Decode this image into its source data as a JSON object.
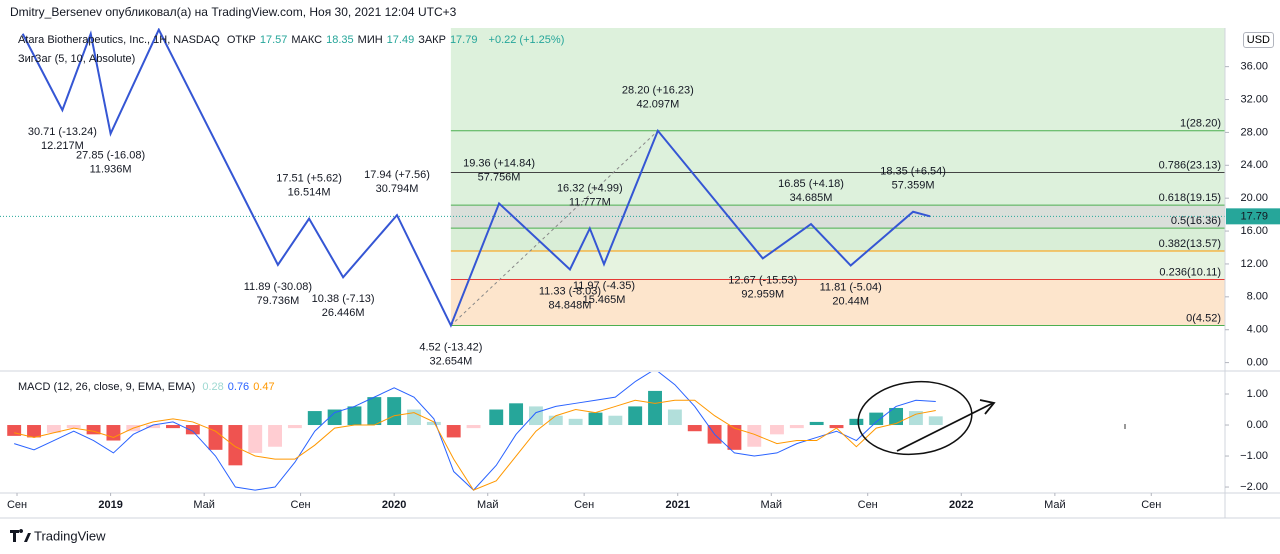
{
  "header": {
    "publisher": "Dmitry_Bersenev опубликовал(а) на TradingView.com, Ноя 30, 2021 12:04 UTC+3",
    "brand": "TradingView"
  },
  "chart_data": [
    {
      "type": "zigzag",
      "title": "Atara Biotherapeutics, Inc., 1Н, NASDAQ",
      "ohlc": [
        {
          "label": "ОТКР",
          "value": 17.57
        },
        {
          "label": "МАКС",
          "value": 18.35
        },
        {
          "label": "МИН",
          "value": 17.49
        },
        {
          "label": "ЗАКР",
          "value": 17.79
        }
      ],
      "change": "+0.22 (+1.25%)",
      "currency": "USD",
      "last": 17.79,
      "ylim": [
        -0.9,
        40.7
      ],
      "yticks": [
        {
          "value": 0,
          "label": "0.00"
        },
        {
          "value": 4,
          "label": "4.00"
        },
        {
          "value": 8,
          "label": "8.00"
        },
        {
          "value": 12,
          "label": "12.00"
        },
        {
          "value": 16,
          "label": "16.00"
        },
        {
          "value": 20,
          "label": "20.00"
        },
        {
          "value": 24,
          "label": "24.00"
        },
        {
          "value": 28,
          "label": "28.00"
        },
        {
          "value": 32,
          "label": "32.00"
        },
        {
          "value": 36,
          "label": "36.00"
        }
      ],
      "series": [
        {
          "name": "ЗигЗаг (5, 10, Absolute)",
          "color": "#3556d4",
          "x": [
            2018.69,
            2018.83,
            2018.93,
            2019.0,
            2019.17,
            2019.59,
            2019.7,
            2019.82,
            2020.01,
            2020.2,
            2020.37,
            2020.62,
            2020.69,
            2020.74,
            2020.93,
            2021.3,
            2021.47,
            2021.61,
            2021.83,
            2021.89
          ],
          "values": [
            40,
            30.71,
            40,
            27.85,
            40.5,
            11.89,
            17.51,
            10.38,
            17.94,
            4.52,
            19.36,
            11.33,
            16.32,
            11.97,
            28.2,
            12.67,
            16.85,
            11.81,
            18.35,
            17.79
          ],
          "pivot_labels": [
            null,
            [
              "30.71 (-13.24)",
              "12.217M"
            ],
            null,
            [
              "27.85 (-16.08)",
              "11.936M"
            ],
            null,
            [
              "11.89 (-30.08)",
              "79.736M"
            ],
            [
              "17.51 (+5.62)",
              "16.514M"
            ],
            [
              "10.38 (-7.13)",
              "26.446M"
            ],
            [
              "17.94 (+7.56)",
              "30.794M"
            ],
            [
              "4.52 (-13.42)",
              "32.654M"
            ],
            [
              "19.36 (+14.84)",
              "57.756M"
            ],
            [
              "11.33 (-8.03)",
              "84.848M"
            ],
            [
              "16.32 (+4.99)",
              "11.777M"
            ],
            [
              "11.97 (-4.35)",
              "15.465M"
            ],
            [
              "28.20 (+16.23)",
              "42.097M"
            ],
            [
              "12.67 (-15.53)",
              "92.959M"
            ],
            [
              "16.85 (+4.18)",
              "34.685M"
            ],
            [
              "11.81 (-5.04)",
              "20.44M"
            ],
            [
              "18.35 (+6.54)",
              "57.359M"
            ],
            null
          ]
        }
      ],
      "fib": {
        "start": 2020.2,
        "levels": [
          {
            "value": 28.2,
            "label": "1(28.20)",
            "color": "#4caf50",
            "fill": "#d9f0d8"
          },
          {
            "value": 23.13,
            "label": "0.786(23.13)",
            "color": "#444444",
            "fill": "#d9f0d8"
          },
          {
            "value": 19.15,
            "label": "0.618(19.15)",
            "color": "#4caf50",
            "fill": "#d6dcd6"
          },
          {
            "value": 16.36,
            "label": "0.5(16.36)",
            "color": "#4caf50",
            "fill": "#d5ecd3"
          },
          {
            "value": 13.57,
            "label": "0.382(13.57)",
            "color": "#ff9800",
            "fill": "#e3f2dd"
          },
          {
            "value": 10.11,
            "label": "0.236(10.11)",
            "color": "#e53935",
            "fill": "#fde2c6"
          },
          {
            "value": 4.52,
            "label": "0(4.52)",
            "color": "#4caf50",
            "fill": "#f7d3d3"
          }
        ]
      }
    },
    {
      "type": "macd",
      "title": "MACD (12, 26, close, 9, EMA, EMA)",
      "ylim": [
        -2.16,
        1.71
      ],
      "yticks": [
        {
          "value": 1,
          "label": "1.00"
        },
        {
          "value": 0,
          "label": "0.00"
        },
        {
          "value": -1,
          "label": "−1.00"
        },
        {
          "value": -2,
          "label": "−2.00"
        }
      ],
      "xlim": [
        2018.61,
        2022.93
      ],
      "xticks": [
        {
          "value": 2018.67,
          "label": "Сен"
        },
        2019,
        {
          "value": 2019.33,
          "label": "Май"
        },
        {
          "value": 2019.67,
          "label": "Сен"
        },
        2020,
        {
          "value": 2020.33,
          "label": "Май"
        },
        {
          "value": 2020.67,
          "label": "Сен"
        },
        2021,
        {
          "value": 2021.33,
          "label": "Май"
        },
        {
          "value": 2021.67,
          "label": "Сен"
        },
        2022,
        {
          "value": 2022.33,
          "label": "Май"
        },
        {
          "value": 2022.67,
          "label": "Сен"
        }
      ],
      "x": [
        2018.66,
        2018.73,
        2018.8,
        2018.87,
        2018.94,
        2019.01,
        2019.08,
        2019.15,
        2019.22,
        2019.29,
        2019.37,
        2019.44,
        2019.51,
        2019.58,
        2019.65,
        2019.72,
        2019.79,
        2019.86,
        2019.93,
        2020.0,
        2020.07,
        2020.14,
        2020.21,
        2020.28,
        2020.36,
        2020.43,
        2020.5,
        2020.57,
        2020.64,
        2020.71,
        2020.78,
        2020.85,
        2020.92,
        2020.99,
        2021.06,
        2021.13,
        2021.2,
        2021.27,
        2021.35,
        2021.42,
        2021.49,
        2021.56,
        2021.63,
        2021.7,
        2021.77,
        2021.84,
        2021.91
      ],
      "series": [
        {
          "kind": "histogram",
          "color": "#26a69a",
          "last": 0.28,
          "values": [
            -0.35,
            -0.4,
            -0.25,
            -0.1,
            -0.3,
            -0.5,
            -0.2,
            -0.1,
            -0.1,
            -0.3,
            -0.8,
            -1.3,
            -0.9,
            -0.7,
            -0.1,
            0.45,
            0.5,
            0.6,
            0.9,
            0.9,
            0.5,
            0.1,
            -0.4,
            -0.1,
            0.5,
            0.7,
            0.6,
            0.3,
            0.2,
            0.4,
            0.3,
            0.6,
            1.1,
            0.5,
            -0.2,
            -0.6,
            -0.8,
            -0.7,
            -0.3,
            -0.1,
            0.1,
            -0.1,
            0.2,
            0.4,
            0.55,
            0.45,
            0.28
          ]
        },
        {
          "kind": "line",
          "color": "#2962ff",
          "last": 0.76,
          "values": [
            -0.6,
            -0.8,
            -0.5,
            -0.2,
            -0.5,
            -0.9,
            -0.3,
            0.0,
            0.1,
            -0.2,
            -1.0,
            -2.0,
            -2.1,
            -2.0,
            -1.2,
            -0.2,
            0.4,
            0.6,
            0.9,
            1.2,
            0.9,
            0.2,
            -1.5,
            -2.1,
            -1.3,
            -0.3,
            0.4,
            0.6,
            0.7,
            0.8,
            0.9,
            1.4,
            1.8,
            1.3,
            0.6,
            -0.3,
            -0.9,
            -1.0,
            -0.9,
            -0.6,
            -0.4,
            -0.2,
            -0.5,
            0.1,
            0.6,
            0.8,
            0.76
          ]
        },
        {
          "kind": "line",
          "color": "#ff9800",
          "last": 0.47,
          "values": [
            -0.25,
            -0.4,
            -0.25,
            -0.1,
            -0.2,
            -0.4,
            -0.1,
            0.1,
            0.2,
            0.1,
            -0.2,
            -0.7,
            -1.0,
            -1.1,
            -1.1,
            -0.65,
            -0.1,
            0.0,
            0.0,
            0.3,
            0.4,
            0.1,
            -1.1,
            -2.1,
            -1.8,
            -1.0,
            -0.2,
            0.3,
            0.5,
            0.4,
            0.6,
            0.8,
            0.7,
            0.8,
            0.8,
            0.3,
            -0.1,
            -0.3,
            -0.6,
            -0.5,
            -0.5,
            -0.1,
            -0.7,
            -0.1,
            0.05,
            0.35,
            0.47
          ]
        }
      ]
    }
  ]
}
